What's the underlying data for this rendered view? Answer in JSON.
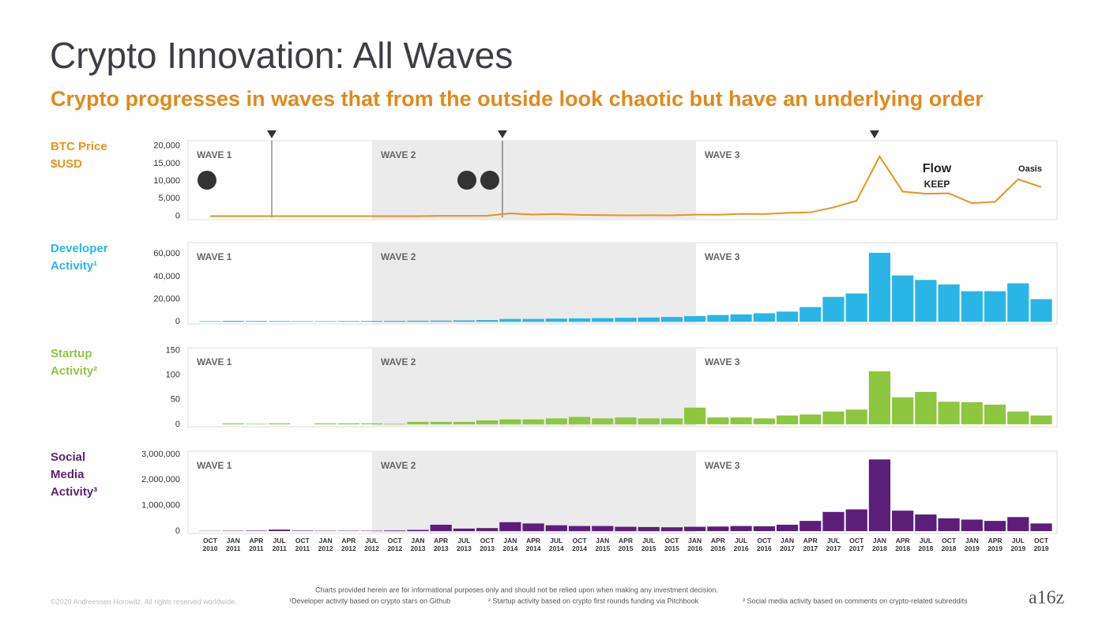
{
  "header": {
    "title": "Crypto Innovation: All Waves",
    "subtitle": "Crypto progresses in waves that from the outside look chaotic but have an underlying order"
  },
  "chart_data": [
    {
      "type": "line",
      "label": [
        "BTC Price",
        "$USD"
      ],
      "color": "#e8921e",
      "waves": [
        "WAVE 1",
        "WAVE 2",
        "WAVE 3"
      ],
      "logos": [
        "Flow",
        "KEEP",
        "Oasis"
      ],
      "values": [
        0.1,
        0.3,
        0.8,
        15,
        5,
        5,
        5,
        7,
        12,
        13,
        100,
        90,
        130,
        800,
        450,
        630,
        380,
        300,
        240,
        270,
        250,
        430,
        420,
        650,
        610,
        950,
        1100,
        2500,
        4400,
        17000,
        7000,
        6400,
        6500,
        3700,
        4100,
        10500,
        8300
      ],
      "ylim": [
        -1000,
        21500
      ],
      "yticks": [
        0,
        {
          "value": 5000,
          "label": "5,000"
        },
        {
          "value": 10000,
          "label": "10,000"
        },
        {
          "value": 15000,
          "label": "15,000"
        },
        {
          "value": 20000,
          "label": "20,000"
        }
      ]
    },
    {
      "type": "bar",
      "label": [
        "Developer",
        "Activity¹"
      ],
      "color": "#29b6e6",
      "waves": [
        "WAVE 1",
        "WAVE 2",
        "WAVE 3"
      ],
      "values": [
        500,
        800,
        700,
        600,
        500,
        500,
        600,
        700,
        800,
        900,
        1000,
        1200,
        1500,
        2500,
        2500,
        2800,
        3000,
        3200,
        3500,
        3800,
        4200,
        5000,
        6000,
        6500,
        7500,
        9000,
        13000,
        22000,
        25000,
        61000,
        41000,
        37000,
        33000,
        27000,
        27000,
        34000,
        20000
      ],
      "ylim": [
        -2000,
        70000
      ],
      "yticks": [
        0,
        {
          "value": 20000,
          "label": "20,000"
        },
        {
          "value": 40000,
          "label": "40,000"
        },
        {
          "value": 60000,
          "label": "60,000"
        }
      ]
    },
    {
      "type": "bar",
      "label": [
        "Startup",
        "Activity²"
      ],
      "color": "#8dc63f",
      "waves": [
        "WAVE 1",
        "WAVE 2",
        "WAVE 3"
      ],
      "values": [
        0,
        2,
        1,
        2,
        0,
        2,
        2,
        2,
        1,
        5,
        5,
        5,
        8,
        10,
        10,
        12,
        15,
        12,
        14,
        12,
        12,
        34,
        14,
        14,
        12,
        18,
        20,
        26,
        30,
        108,
        55,
        66,
        46,
        45,
        40,
        26,
        18
      ],
      "ylim": [
        -5,
        156
      ],
      "yticks": [
        0,
        50,
        100,
        150
      ]
    },
    {
      "type": "bar",
      "label": [
        "Social",
        "Media",
        "Activity³"
      ],
      "color": "#5b1f7a",
      "waves": [
        "WAVE 1",
        "WAVE 2",
        "WAVE 3"
      ],
      "categories": [
        "OCT 2010",
        "JAN 2011",
        "APR 2011",
        "JUL 2011",
        "OCT 2011",
        "JAN 2012",
        "APR 2012",
        "JUL 2012",
        "OCT 2012",
        "JAN 2013",
        "APR 2013",
        "JUL 2013",
        "OCT 2013",
        "JAN 2014",
        "APR 2014",
        "JUL 2014",
        "OCT 2014",
        "JAN 2015",
        "APR 2015",
        "JUL 2015",
        "OCT 2015",
        "JAN 2016",
        "APR 2016",
        "JUL 2016",
        "OCT 2016",
        "JAN 2017",
        "APR 2017",
        "JUL 2017",
        "OCT 2017",
        "JAN 2018",
        "APR 2018",
        "JUL 2018",
        "OCT 2018",
        "JAN 2019",
        "APR 2019",
        "JUL 2019",
        "OCT 2019"
      ],
      "values": [
        10000,
        15000,
        20000,
        60000,
        20000,
        15000,
        15000,
        15000,
        25000,
        50000,
        250000,
        100000,
        120000,
        350000,
        300000,
        230000,
        200000,
        200000,
        170000,
        160000,
        150000,
        170000,
        180000,
        200000,
        190000,
        250000,
        400000,
        750000,
        850000,
        2800000,
        800000,
        650000,
        500000,
        450000,
        400000,
        550000,
        300000
      ],
      "ylim": [
        -90000,
        3120000
      ],
      "yticks": [
        0,
        {
          "value": 1000000,
          "label": "1,000,000"
        },
        {
          "value": 2000000,
          "label": "2,000,000"
        },
        {
          "value": 3000000,
          "label": "3,000,000"
        }
      ]
    }
  ],
  "footer": {
    "disclaimer": "Charts provided herein are for informational purposes only and should not be relied upon when making any investment decision.",
    "notes": [
      "¹Developer activity based on crypto stars on Github",
      "² Startup activity based on crypto first rounds funding via Pitchbook",
      "³ Social media activity based on comments on crypto-related subreddits"
    ],
    "copyright": "©2020 Andreessen Horowitz. All rights reserved worldwide.",
    "brand": "a16z"
  }
}
